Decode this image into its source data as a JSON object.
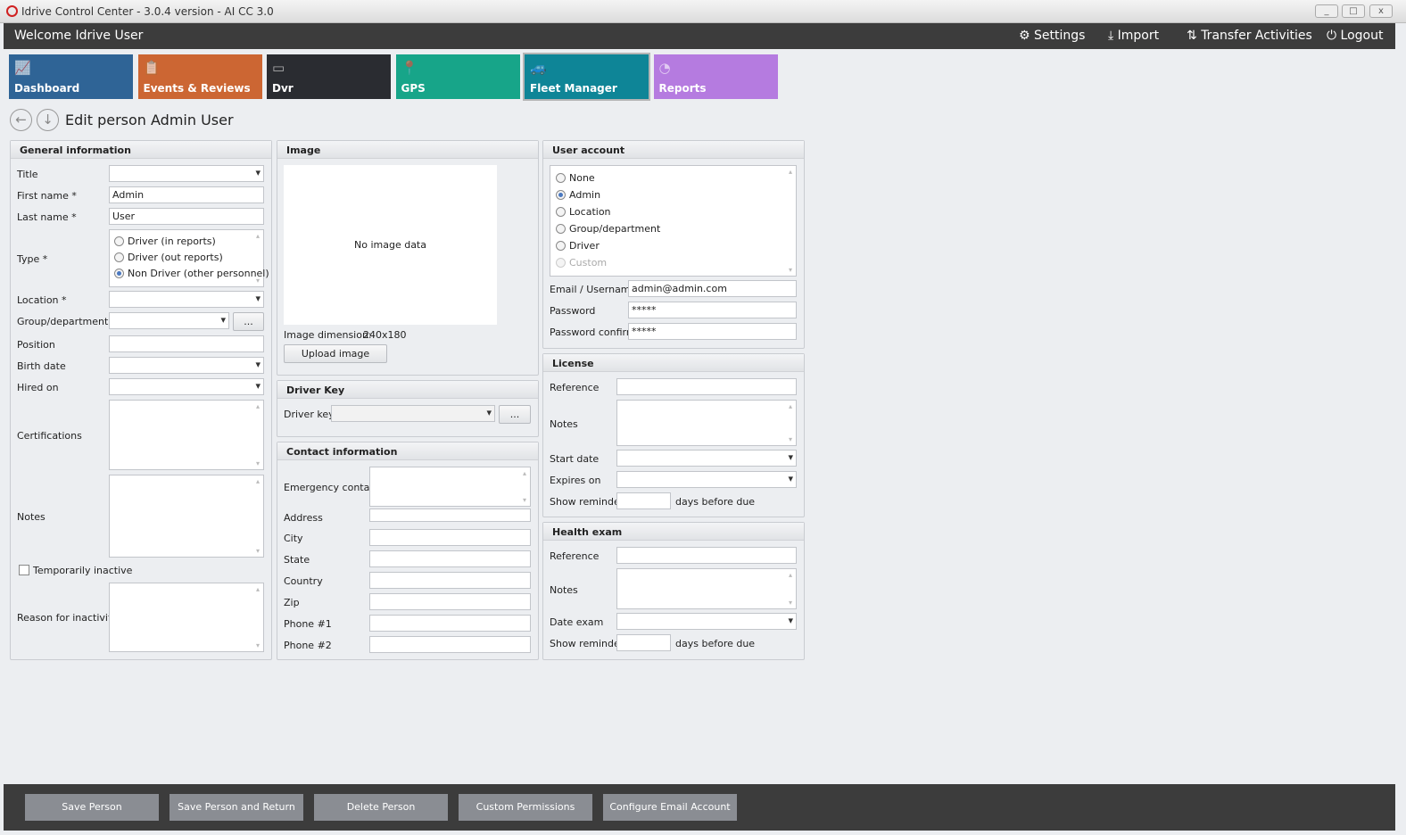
{
  "window": {
    "title": "Idrive Control Center - 3.0.4 version - AI CC 3.0",
    "minimize": "_",
    "maximize": "□",
    "close": "x"
  },
  "header": {
    "welcome": "Welcome Idrive User",
    "settings": "Settings",
    "import": "Import",
    "transfer": "Transfer Activities",
    "logout": "Logout"
  },
  "tiles": [
    {
      "label": "Dashboard",
      "color": "#2f6496"
    },
    {
      "label": "Events & Reviews",
      "color": "#cc6633"
    },
    {
      "label": "Dvr",
      "color": "#2a2c31"
    },
    {
      "label": "GPS",
      "color": "#17a589"
    },
    {
      "label": "Fleet Manager",
      "color": "#0e8597",
      "active": true
    },
    {
      "label": "Reports",
      "color": "#b57be0"
    }
  ],
  "page": {
    "title": "Edit person Admin User"
  },
  "general": {
    "header": "General information",
    "title_label": "Title",
    "title_value": "",
    "first_label": "First name *",
    "first_value": "Admin",
    "last_label": "Last name *",
    "last_value": "User",
    "type_label": "Type *",
    "type_options": [
      "Driver (in reports)",
      "Driver (out reports)",
      "Non Driver (other personnel)"
    ],
    "type_selected": "Non Driver (other personnel)",
    "location_label": "Location *",
    "group_label": "Group/department",
    "group_button": "...",
    "position_label": "Position",
    "birth_label": "Birth date",
    "hired_label": "Hired on",
    "cert_label": "Certifications",
    "notes_label": "Notes",
    "inactive_label": "Temporarily inactive",
    "inactive_checked": false,
    "reason_label": "Reason for inactivity"
  },
  "image": {
    "header": "Image",
    "placeholder": "No image data",
    "dimension_label": "Image dimension:",
    "dimension_value": "240x180",
    "upload": "Upload image"
  },
  "driverkey": {
    "header": "Driver Key",
    "label": "Driver key",
    "button": "..."
  },
  "contact": {
    "header": "Contact information",
    "emergency": "Emergency contact",
    "address": "Address",
    "city": "City",
    "state": "State",
    "country": "Country",
    "zip": "Zip",
    "phone1": "Phone #1",
    "phone2": "Phone #2"
  },
  "account": {
    "header": "User account",
    "options": [
      "None",
      "Admin",
      "Location",
      "Group/department",
      "Driver",
      "Custom"
    ],
    "selected": "Admin",
    "email_label": "Email / Username",
    "email_value": "admin@admin.com",
    "password_label": "Password",
    "password_value": "*****",
    "confirm_label": "Password confirm",
    "confirm_value": "*****"
  },
  "license": {
    "header": "License",
    "reference": "Reference",
    "notes": "Notes",
    "start": "Start date",
    "expires": "Expires on",
    "reminder": "Show reminder",
    "days": "days before due"
  },
  "health": {
    "header": "Health exam",
    "reference": "Reference",
    "notes": "Notes",
    "date": "Date exam",
    "reminder": "Show reminder",
    "days": "days before due"
  },
  "footer": {
    "save": "Save Person",
    "save_return": "Save Person and Return",
    "delete": "Delete Person",
    "permissions": "Custom Permissions",
    "email": "Configure Email Account"
  }
}
